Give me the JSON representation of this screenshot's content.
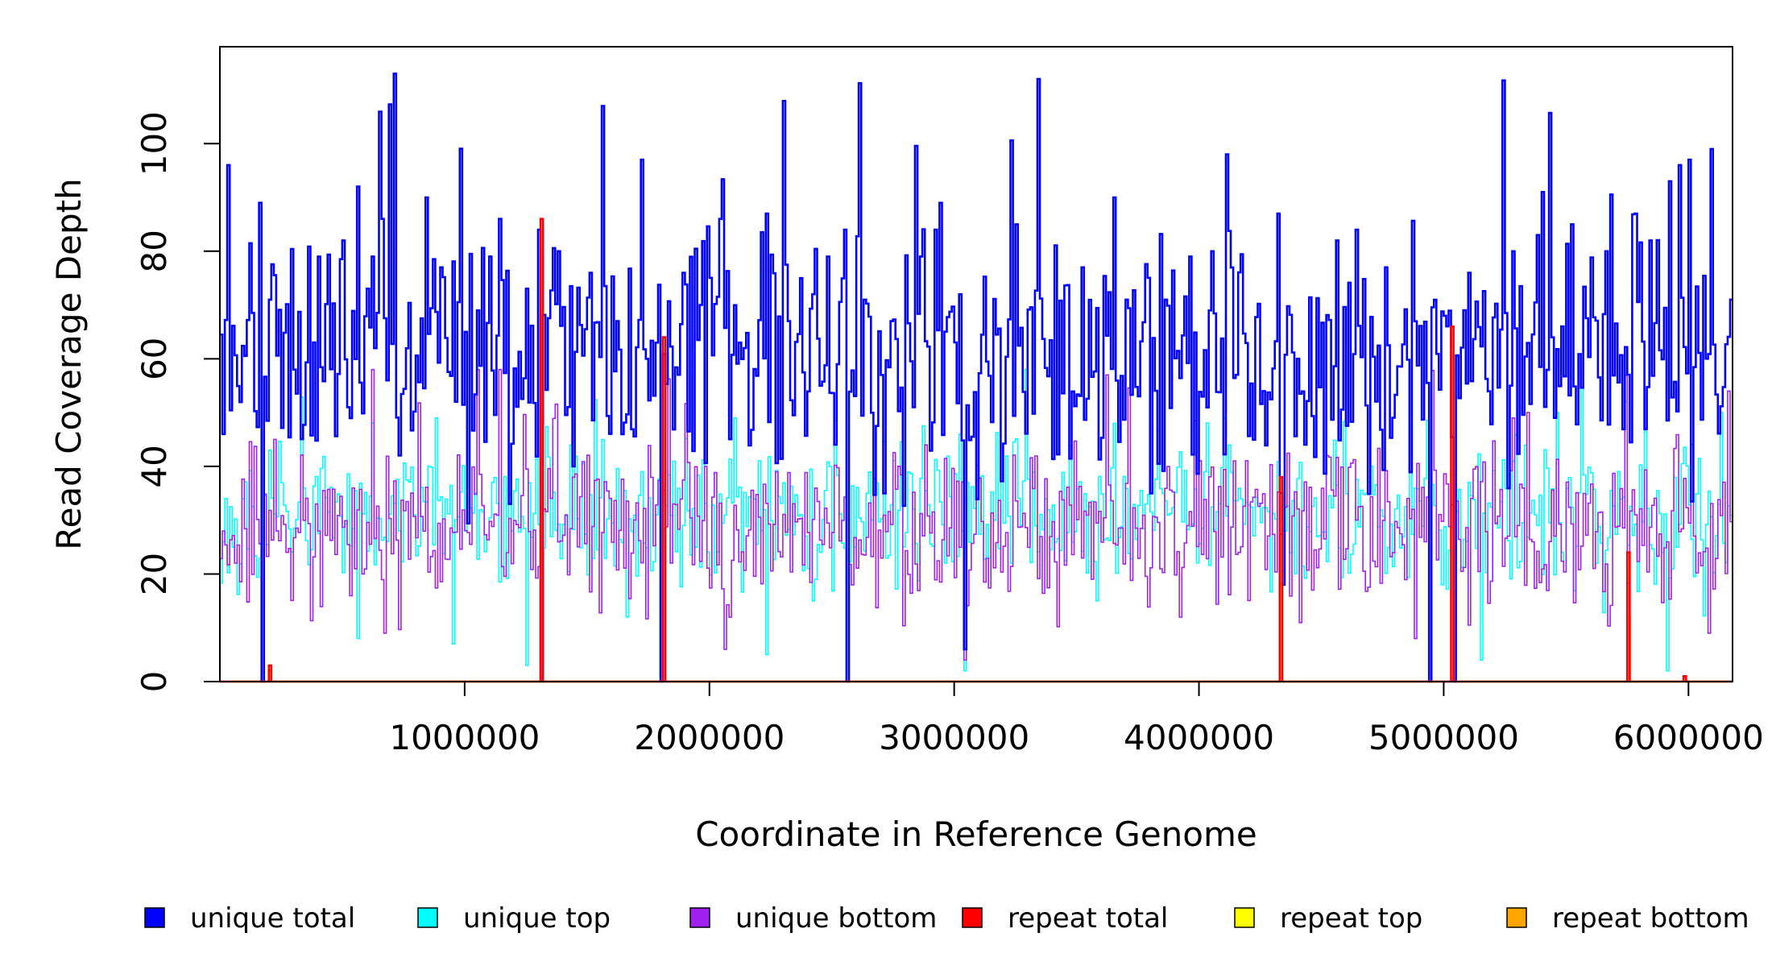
{
  "chart_data": {
    "type": "line",
    "title": "",
    "xlabel": "Coordinate in Reference Genome",
    "ylabel": "Read Coverage Depth",
    "xlim": [
      0,
      6180000
    ],
    "ylim": [
      0,
      118
    ],
    "x_ticks": [
      1000000,
      2000000,
      3000000,
      4000000,
      5000000,
      6000000
    ],
    "x_tick_labels": [
      "1000000",
      "2000000",
      "3000000",
      "4000000",
      "5000000",
      "6000000"
    ],
    "y_ticks": [
      0,
      20,
      40,
      60,
      80,
      100
    ],
    "y_tick_labels": [
      "0",
      "20",
      "40",
      "60",
      "80",
      "100"
    ],
    "grid": false,
    "legend_position": "bottom",
    "step_width": 10000,
    "series": [
      {
        "key": "unique_total",
        "name": "unique total",
        "color": "#0000ff",
        "base": 60,
        "spread": 14,
        "spike_prob": 0.05,
        "spike_max": 112,
        "points": [
          [
            10000,
            46
          ],
          [
            30000,
            96
          ],
          [
            160000,
            89
          ],
          [
            170000,
            0
          ],
          [
            200000,
            71
          ],
          [
            300000,
            58
          ],
          [
            400000,
            79
          ],
          [
            500000,
            82
          ],
          [
            520000,
            51
          ],
          [
            560000,
            92
          ],
          [
            620000,
            79
          ],
          [
            660000,
            86
          ],
          [
            710000,
            113
          ],
          [
            840000,
            90
          ],
          [
            900000,
            77
          ],
          [
            960000,
            52
          ],
          [
            1000000,
            65
          ],
          [
            1050000,
            69
          ],
          [
            1100000,
            79
          ],
          [
            1140000,
            86
          ],
          [
            1180000,
            33
          ],
          [
            1300000,
            84
          ],
          [
            1310000,
            0
          ],
          [
            1380000,
            80
          ],
          [
            1440000,
            40
          ],
          [
            1510000,
            76
          ],
          [
            1560000,
            107
          ],
          [
            1620000,
            67
          ],
          [
            1720000,
            97
          ],
          [
            1780000,
            63
          ],
          [
            1800000,
            0
          ],
          [
            1890000,
            76
          ],
          [
            1960000,
            70
          ],
          [
            2040000,
            86
          ],
          [
            2140000,
            62
          ],
          [
            2230000,
            87
          ],
          [
            2320000,
            67
          ],
          [
            2420000,
            72
          ],
          [
            2480000,
            79
          ],
          [
            2550000,
            84
          ],
          [
            2560000,
            0
          ],
          [
            2630000,
            71
          ],
          [
            2740000,
            67
          ],
          [
            2860000,
            79
          ],
          [
            2920000,
            84
          ],
          [
            2940000,
            89
          ],
          [
            3020000,
            72
          ],
          [
            3040000,
            6
          ],
          [
            3250000,
            85
          ],
          [
            3340000,
            112
          ],
          [
            3520000,
            77
          ],
          [
            3650000,
            90
          ],
          [
            3700000,
            71
          ],
          [
            3860000,
            71
          ],
          [
            3960000,
            79
          ],
          [
            4050000,
            80
          ],
          [
            4110000,
            98
          ],
          [
            4320000,
            87
          ],
          [
            4340000,
            18
          ],
          [
            4400000,
            60
          ],
          [
            4560000,
            82
          ],
          [
            4640000,
            84
          ],
          [
            4760000,
            77
          ],
          [
            4940000,
            0
          ],
          [
            5000000,
            68
          ],
          [
            5040000,
            0
          ],
          [
            5100000,
            76
          ],
          [
            5280000,
            80
          ],
          [
            5380000,
            83
          ],
          [
            5400000,
            91
          ],
          [
            5520000,
            85
          ],
          [
            5660000,
            80
          ],
          [
            5780000,
            87
          ],
          [
            5840000,
            82
          ],
          [
            5920000,
            93
          ],
          [
            5960000,
            96
          ],
          [
            6000000,
            97
          ],
          [
            6090000,
            99
          ],
          [
            6170000,
            71
          ]
        ]
      },
      {
        "key": "unique_top",
        "name": "unique top",
        "color": "#00ffff",
        "base": 30,
        "spread": 8,
        "spike_prob": 0.04,
        "spike_max": 55,
        "points": [
          [
            10000,
            26
          ],
          [
            170000,
            0
          ],
          [
            200000,
            43
          ],
          [
            560000,
            8
          ],
          [
            880000,
            49
          ],
          [
            950000,
            7
          ],
          [
            1250000,
            3
          ],
          [
            1310000,
            0
          ],
          [
            1560000,
            45
          ],
          [
            1660000,
            12
          ],
          [
            1800000,
            0
          ],
          [
            2100000,
            49
          ],
          [
            2230000,
            5
          ],
          [
            2560000,
            0
          ],
          [
            2640000,
            35
          ],
          [
            3020000,
            46
          ],
          [
            3040000,
            2
          ],
          [
            3290000,
            58
          ],
          [
            3580000,
            15
          ],
          [
            3650000,
            48
          ],
          [
            4100000,
            49
          ],
          [
            4340000,
            18
          ],
          [
            4680000,
            35
          ],
          [
            4940000,
            0
          ],
          [
            5040000,
            0
          ],
          [
            5150000,
            4
          ],
          [
            5460000,
            50
          ],
          [
            5560000,
            56
          ],
          [
            5740000,
            52
          ],
          [
            5910000,
            2
          ],
          [
            6130000,
            50
          ]
        ]
      },
      {
        "key": "unique_bottom",
        "name": "unique bottom",
        "color": "#a020f0",
        "base": 28,
        "spread": 9,
        "spike_prob": 0.04,
        "spike_max": 58,
        "points": [
          [
            10000,
            28
          ],
          [
            170000,
            0
          ],
          [
            620000,
            58
          ],
          [
            670000,
            9
          ],
          [
            1050000,
            58
          ],
          [
            1140000,
            58
          ],
          [
            1310000,
            0
          ],
          [
            1800000,
            0
          ],
          [
            2060000,
            6
          ],
          [
            2560000,
            0
          ],
          [
            2880000,
            44
          ],
          [
            3040000,
            4
          ],
          [
            3620000,
            57
          ],
          [
            4340000,
            18
          ],
          [
            4520000,
            42
          ],
          [
            4880000,
            8
          ],
          [
            4940000,
            0
          ],
          [
            5040000,
            0
          ],
          [
            5280000,
            49
          ],
          [
            5340000,
            50
          ],
          [
            5740000,
            57
          ],
          [
            6080000,
            9
          ],
          [
            6160000,
            54
          ]
        ]
      },
      {
        "key": "repeat_total",
        "name": "repeat total",
        "color": "#ff0000",
        "base": 0,
        "spread": 0,
        "spike_prob": 0,
        "spike_max": 0,
        "points": [
          [
            200000,
            3
          ],
          [
            1310000,
            86
          ],
          [
            1810000,
            64
          ],
          [
            4330000,
            38
          ],
          [
            5030000,
            66
          ],
          [
            5750000,
            24
          ],
          [
            5980000,
            1
          ]
        ]
      },
      {
        "key": "repeat_top",
        "name": "repeat top",
        "color": "#ffff00",
        "base": 0,
        "spread": 0,
        "spike_prob": 0,
        "spike_max": 0,
        "points": [
          [
            200000,
            1
          ],
          [
            4330000,
            20
          ],
          [
            5750000,
            12
          ]
        ]
      },
      {
        "key": "repeat_bottom",
        "name": "repeat bottom",
        "color": "#ffa500",
        "base": 0,
        "spread": 0,
        "spike_prob": 0,
        "spike_max": 0,
        "points": [
          [
            200000,
            2
          ],
          [
            4330000,
            18
          ],
          [
            5750000,
            12
          ],
          [
            5980000,
            1
          ]
        ]
      }
    ]
  }
}
